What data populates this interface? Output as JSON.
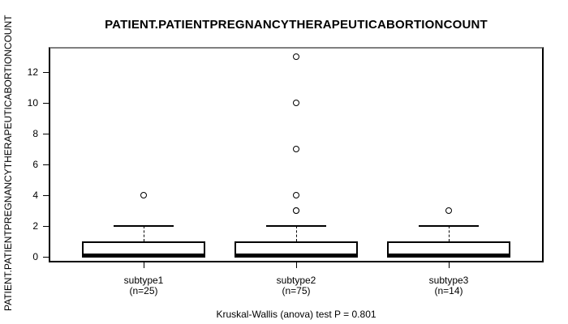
{
  "page": {
    "background": "#ffffff"
  },
  "chart_data": {
    "type": "boxplot",
    "title": "PATIENT.PATIENTPREGNANCYTHERAPEUTICABORTIONCOUNT",
    "ylabel": "PATIENT.PATIENTPREGNANCYTHERAPEUTICABORTIONCOUNT",
    "xlabel": "",
    "caption": "Kruskal-Wallis (anova) test P = 0.801",
    "yticks": [
      0,
      2,
      4,
      6,
      8,
      10,
      12
    ],
    "ylim": [
      -0.37,
      13.63
    ],
    "grid": false,
    "legend": "none",
    "colors": {
      "line": "#000000",
      "frame_top": "#7f7f7f",
      "box_fill": "#ffffff",
      "background": "#ffffff"
    },
    "groups": [
      {
        "label": "subtype1",
        "sublabel": "(n=25)",
        "q1": 0,
        "median": 0,
        "q3": 1,
        "whisker_low": 0,
        "whisker_high": 2,
        "outliers": [
          4
        ]
      },
      {
        "label": "subtype2",
        "sublabel": "(n=75)",
        "q1": 0,
        "median": 0,
        "q3": 1,
        "whisker_low": 0,
        "whisker_high": 2,
        "outliers": [
          3,
          3,
          4,
          7,
          10,
          13
        ]
      },
      {
        "label": "subtype3",
        "sublabel": "(n=14)",
        "q1": 0,
        "median": 0,
        "q3": 1,
        "whisker_low": 0,
        "whisker_high": 2,
        "outliers": [
          3
        ]
      }
    ]
  }
}
